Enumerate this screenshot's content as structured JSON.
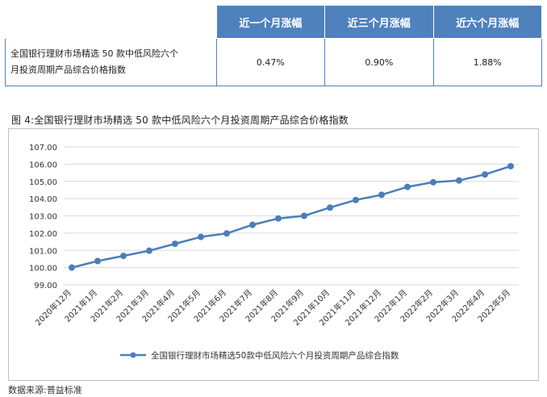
{
  "table": {
    "headers": [
      "",
      "近一个月涨幅",
      "近三个月涨幅",
      "近六个月涨幅"
    ],
    "row_name_lines": [
      "全国银行理财市场精选 50 款中低风险六个",
      "月投资周期产品综合价格指数"
    ],
    "values": [
      "0.47%",
      "0.90%",
      "1.88%"
    ]
  },
  "figure_title": "图 4:全国银行理财市场精选 50 款中低风险六个月投资周期产品综合价格指数",
  "source": "数据来源:普益标准",
  "colors": {
    "header": "#4f81bd",
    "line": "#4a7ebb",
    "grid": "#d9d9d9"
  },
  "chart_data": {
    "type": "line",
    "categories": [
      "2020年12月",
      "2021年1月",
      "2021年2月",
      "2021年3月",
      "2021年4月",
      "2021年5月",
      "2021年6月",
      "2021年7月",
      "2021年8月",
      "2021年9月",
      "2021年10月",
      "2021年11月",
      "2021年12月",
      "2022年1月",
      "2022年2月",
      "2022年3月",
      "2022年4月",
      "2022年5月"
    ],
    "series": [
      {
        "name": "全国银行理财市场精选50款中低风险六个月投资周期产品综合指数",
        "values": [
          100.0,
          100.38,
          100.68,
          100.98,
          101.38,
          101.78,
          101.98,
          102.48,
          102.85,
          103.0,
          103.48,
          103.92,
          104.22,
          104.68,
          104.95,
          105.05,
          105.4,
          105.88
        ]
      }
    ],
    "yticks": [
      "99.00",
      "100.00",
      "101.00",
      "102.00",
      "103.00",
      "104.00",
      "105.00",
      "106.00",
      "107.00"
    ],
    "ylim": [
      99,
      107
    ],
    "grid": true,
    "legend_position": "bottom"
  }
}
